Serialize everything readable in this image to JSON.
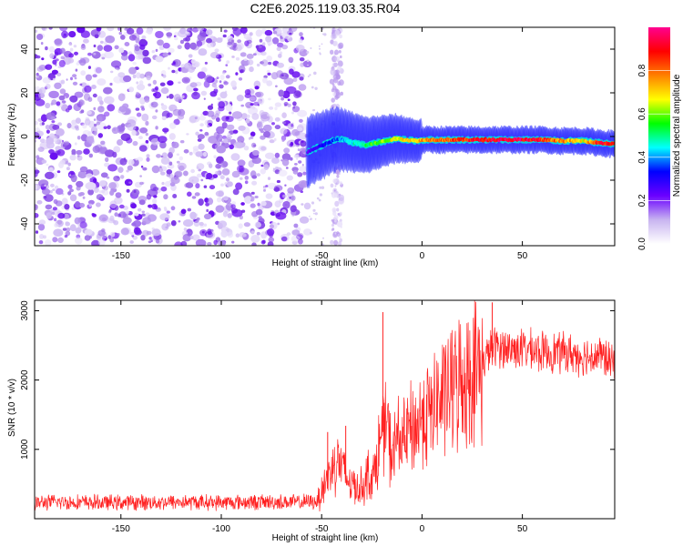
{
  "title": "C2E6.2025.119.03.35.R04",
  "chart_data": [
    {
      "type": "heatmap",
      "xlabel": "Height of straight line (km)",
      "ylabel": "Frequency (Hz)",
      "xlim": [
        -193,
        96
      ],
      "ylim": [
        -50,
        50
      ],
      "xticks": [
        -150,
        -100,
        -50,
        0,
        50
      ],
      "yticks": [
        -40,
        -20,
        0,
        20,
        40
      ],
      "noise_region_x": [
        -193,
        -57
      ],
      "secondary_noise_band_x": [
        -45,
        -40
      ],
      "trace": {
        "x": [
          -57,
          -52,
          -47,
          -42,
          -38,
          -33,
          -28,
          -23,
          -18,
          -13,
          -8,
          -3,
          2,
          7,
          12,
          20,
          30,
          40,
          50,
          60,
          70,
          80,
          90,
          96
        ],
        "y": [
          -7,
          -5,
          -3,
          -1,
          -2,
          -3,
          -4,
          -3,
          -2,
          -1,
          -1.5,
          -2,
          -1.5,
          -1.5,
          -1.5,
          -1.5,
          -1.5,
          -1.5,
          -1.5,
          -1.5,
          -2,
          -2,
          -3,
          -3.5
        ],
        "amplitude": [
          0.25,
          0.3,
          0.35,
          0.4,
          0.45,
          0.5,
          0.55,
          0.6,
          0.65,
          0.7,
          0.75,
          0.75,
          0.8,
          0.8,
          0.85,
          0.9,
          0.95,
          1.0,
          1.0,
          0.9,
          0.8,
          0.7,
          0.95,
          0.95
        ]
      },
      "colorbar": {
        "label": "Normalized spectral amplitude",
        "ticks": [
          0.0,
          0.2,
          0.4,
          0.6,
          0.8
        ],
        "range": [
          0,
          1
        ],
        "colormap": [
          "#ffffff",
          "#c8b4f0",
          "#6a00ff",
          "#0000ff",
          "#00ffff",
          "#00ff00",
          "#ffff00",
          "#ff8000",
          "#ff0000",
          "#ff0090"
        ]
      },
      "grid": false
    },
    {
      "type": "line",
      "xlabel": "Height of straight line (km)",
      "ylabel": "SNR (10 * v/v)",
      "xlim": [
        -193,
        96
      ],
      "ylim": [
        0,
        3150
      ],
      "xticks": [
        -150,
        -100,
        -50,
        0,
        50
      ],
      "yticks": [
        1000,
        2000,
        3000
      ],
      "color": "#ff2020",
      "series": [
        {
          "x": [
            -193,
            -180,
            -160,
            -140,
            -120,
            -100,
            -80,
            -60,
            -52,
            -48,
            -45,
            -42,
            -38,
            -35,
            -30,
            -27,
            -24,
            -21,
            -18,
            -15,
            -12,
            -9,
            -6,
            -3,
            0,
            5,
            10,
            15,
            20,
            25,
            30,
            33,
            35,
            38,
            42,
            50,
            60,
            70,
            80,
            90,
            96
          ],
          "y": [
            230,
            240,
            230,
            235,
            240,
            235,
            240,
            240,
            250,
            550,
            700,
            900,
            600,
            500,
            450,
            650,
            600,
            1100,
            1400,
            900,
            1200,
            1100,
            1300,
            1300,
            1500,
            1550,
            1750,
            1900,
            2000,
            2100,
            2200,
            2400,
            2450,
            2500,
            2450,
            2450,
            2400,
            2400,
            2350,
            2350,
            2200
          ],
          "spikes": [
            {
              "x": -19.5,
              "y": 2980
            },
            {
              "x": 35,
              "y": 3120
            },
            {
              "x": -38,
              "y": 1340
            },
            {
              "x": -47,
              "y": 1250
            }
          ]
        }
      ],
      "grid": false
    }
  ]
}
